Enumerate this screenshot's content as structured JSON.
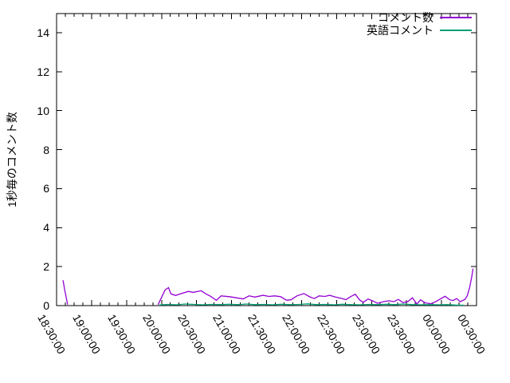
{
  "figure": {
    "background_color": "#ffffff",
    "axis_color": "#000000",
    "text_color": "#000000"
  },
  "chart_data": {
    "type": "line",
    "title": "",
    "xlabel": "",
    "ylabel": "1秒毎のコメント数",
    "xlim_minutes": [
      0,
      360
    ],
    "ylim": [
      0,
      15
    ],
    "grid": false,
    "legend_position": "top-right-inside",
    "y_ticks": [
      0,
      2,
      4,
      6,
      8,
      10,
      12,
      14
    ],
    "x_ticks": [
      {
        "label": "18:30:00",
        "min": 0
      },
      {
        "label": "19:00:00",
        "min": 30
      },
      {
        "label": "19:30:00",
        "min": 60
      },
      {
        "label": "20:00:00",
        "min": 90
      },
      {
        "label": "20:30:00",
        "min": 120
      },
      {
        "label": "21:00:00",
        "min": 150
      },
      {
        "label": "21:30:00",
        "min": 180
      },
      {
        "label": "22:00:00",
        "min": 210
      },
      {
        "label": "22:30:00",
        "min": 240
      },
      {
        "label": "23:00:00",
        "min": 270
      },
      {
        "label": "23:30:00",
        "min": 300
      },
      {
        "label": "00:00:00",
        "min": 330
      },
      {
        "label": "00:30:00",
        "min": 360
      }
    ],
    "x_minor_tick_interval_min": 7.5,
    "series": [
      {
        "name": "コメント数",
        "color": "#9400d3",
        "segments": [
          [
            [
              5.5,
              1.3
            ],
            [
              7,
              0.8
            ],
            [
              9.5,
              0.05
            ]
          ],
          [
            [
              87,
              0.05
            ],
            [
              89,
              0.3
            ],
            [
              93,
              0.8
            ],
            [
              96,
              0.92
            ],
            [
              98,
              0.6
            ],
            [
              102,
              0.52
            ],
            [
              107,
              0.62
            ],
            [
              113,
              0.73
            ],
            [
              117,
              0.68
            ],
            [
              124,
              0.76
            ],
            [
              128,
              0.6
            ],
            [
              132,
              0.48
            ],
            [
              137,
              0.27
            ],
            [
              141,
              0.5
            ],
            [
              148,
              0.46
            ],
            [
              154,
              0.4
            ],
            [
              160,
              0.34
            ],
            [
              165,
              0.5
            ],
            [
              170,
              0.44
            ],
            [
              177,
              0.53
            ],
            [
              182,
              0.47
            ],
            [
              187,
              0.5
            ],
            [
              192,
              0.46
            ],
            [
              197,
              0.28
            ],
            [
              201,
              0.3
            ],
            [
              206,
              0.5
            ],
            [
              212,
              0.62
            ],
            [
              217,
              0.45
            ],
            [
              221,
              0.36
            ],
            [
              225,
              0.5
            ],
            [
              230,
              0.47
            ],
            [
              234,
              0.53
            ],
            [
              239,
              0.44
            ],
            [
              245,
              0.36
            ],
            [
              248,
              0.3
            ],
            [
              252,
              0.46
            ],
            [
              256,
              0.58
            ],
            [
              260,
              0.28
            ],
            [
              263,
              0.17
            ],
            [
              267,
              0.34
            ],
            [
              271,
              0.24
            ],
            [
              275,
              0.12
            ],
            [
              280,
              0.2
            ],
            [
              285,
              0.25
            ],
            [
              289,
              0.2
            ],
            [
              293,
              0.32
            ],
            [
              297,
              0.15
            ],
            [
              301,
              0.2
            ],
            [
              305,
              0.4
            ],
            [
              309,
              0.08
            ],
            [
              312,
              0.3
            ],
            [
              316,
              0.14
            ],
            [
              321,
              0.1
            ],
            [
              325,
              0.2
            ],
            [
              329,
              0.34
            ],
            [
              333,
              0.48
            ],
            [
              337,
              0.3
            ],
            [
              340,
              0.26
            ],
            [
              343,
              0.36
            ],
            [
              346,
              0.2
            ],
            [
              350,
              0.32
            ],
            [
              352,
              0.5
            ],
            [
              354,
              0.9
            ],
            [
              356,
              1.5
            ],
            [
              357,
              1.9
            ]
          ]
        ]
      },
      {
        "name": "英語コメント",
        "color": "#009e73",
        "segments": [
          [
            [
              88,
              0.03
            ],
            [
              95,
              0.06
            ],
            [
              103,
              0.04
            ],
            [
              110,
              0.08
            ],
            [
              118,
              0.06
            ],
            [
              125,
              0.04
            ],
            [
              133,
              0.06
            ],
            [
              140,
              0.05
            ],
            [
              148,
              0.07
            ],
            [
              155,
              0.05
            ],
            [
              163,
              0.08
            ],
            [
              170,
              0.05
            ],
            [
              178,
              0.06
            ],
            [
              185,
              0.04
            ],
            [
              193,
              0.07
            ],
            [
              200,
              0.05
            ],
            [
              208,
              0.06
            ],
            [
              215,
              0.09
            ],
            [
              223,
              0.05
            ],
            [
              230,
              0.06
            ],
            [
              238,
              0.04
            ],
            [
              245,
              0.07
            ],
            [
              253,
              0.05
            ],
            [
              260,
              0.04
            ],
            [
              268,
              0.06
            ],
            [
              275,
              0.05
            ],
            [
              283,
              0.07
            ],
            [
              290,
              0.05
            ],
            [
              297,
              0.08
            ],
            [
              305,
              0.05
            ],
            [
              313,
              0.04
            ],
            [
              320,
              0.05
            ],
            [
              328,
              0.04
            ],
            [
              335,
              0.05
            ],
            [
              342,
              0.03
            ],
            [
              349,
              0.02
            ]
          ]
        ]
      }
    ]
  }
}
